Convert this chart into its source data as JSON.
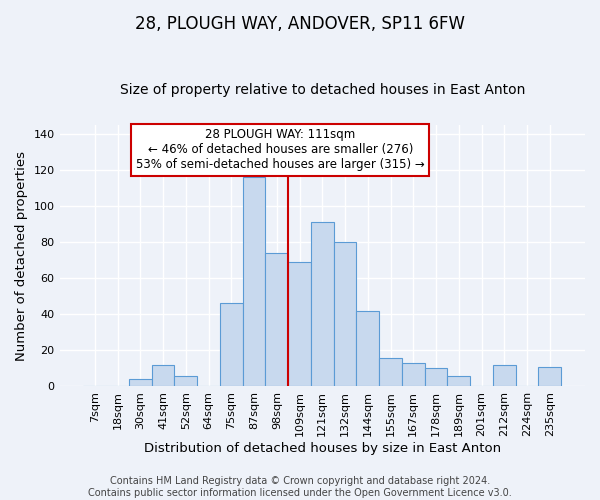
{
  "title": "28, PLOUGH WAY, ANDOVER, SP11 6FW",
  "subtitle": "Size of property relative to detached houses in East Anton",
  "xlabel": "Distribution of detached houses by size in East Anton",
  "ylabel": "Number of detached properties",
  "categories": [
    "7sqm",
    "18sqm",
    "30sqm",
    "41sqm",
    "52sqm",
    "64sqm",
    "75sqm",
    "87sqm",
    "98sqm",
    "109sqm",
    "121sqm",
    "132sqm",
    "144sqm",
    "155sqm",
    "167sqm",
    "178sqm",
    "189sqm",
    "201sqm",
    "212sqm",
    "224sqm",
    "235sqm"
  ],
  "values": [
    0,
    0,
    4,
    12,
    6,
    0,
    46,
    116,
    74,
    69,
    91,
    80,
    42,
    16,
    13,
    10,
    6,
    0,
    12,
    0,
    11
  ],
  "bar_color": "#c8d9ee",
  "bar_edge_color": "#5b9bd5",
  "vline_color": "#cc0000",
  "annotation_title": "28 PLOUGH WAY: 111sqm",
  "annotation_line1": "← 46% of detached houses are smaller (276)",
  "annotation_line2": "53% of semi-detached houses are larger (315) →",
  "annotation_box_edge": "#cc0000",
  "ylim": [
    0,
    145
  ],
  "yticks": [
    0,
    20,
    40,
    60,
    80,
    100,
    120,
    140
  ],
  "footer1": "Contains HM Land Registry data © Crown copyright and database right 2024.",
  "footer2": "Contains public sector information licensed under the Open Government Licence v3.0.",
  "bg_color": "#eef2f9",
  "grid_color": "#ffffff",
  "title_fontsize": 12,
  "subtitle_fontsize": 10,
  "axis_label_fontsize": 9.5,
  "tick_fontsize": 8,
  "annotation_fontsize": 8.5,
  "footer_fontsize": 7
}
